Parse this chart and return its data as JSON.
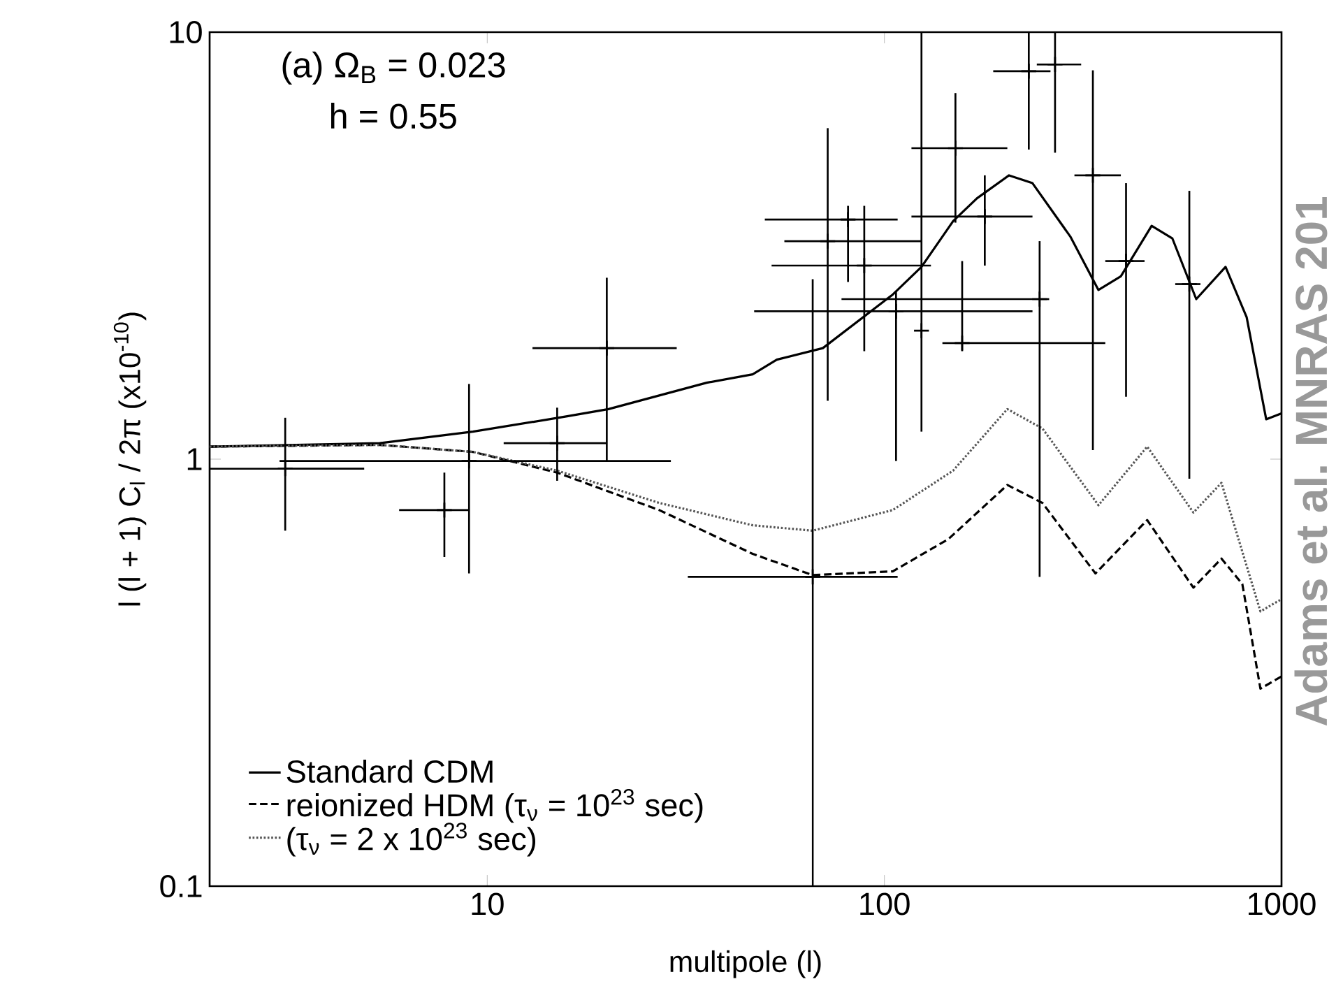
{
  "chart_data": {
    "type": "line",
    "xlabel": "multipole (l)",
    "ylabel": "l (l + 1) C$_{l}$ / 2π  (x10$^{-10}$)",
    "annotations": [
      "(a) Ω$_{B}$ = 0.023",
      "h = 0.55",
      "Adams et al. MNRAS 201"
    ],
    "log": "xy",
    "xlim": [
      2,
      1000
    ],
    "ylim": [
      0.1,
      10
    ],
    "xticks": [
      10,
      100,
      1000
    ],
    "yticks": [
      0.1,
      1,
      10
    ],
    "legend": "bottom left",
    "series": [
      {
        "name": "Standard CDM",
        "color": "#000000",
        "line_style": "solid",
        "x": [
          2,
          5.36,
          9.2,
          15.9,
          20.2,
          35.7,
          46.6,
          53.6,
          70,
          105,
          124,
          149,
          171,
          206,
          236,
          294,
          346,
          394,
          471,
          531,
          610,
          723,
          817,
          915,
          1000
        ],
        "values": [
          1.07,
          1.09,
          1.16,
          1.26,
          1.31,
          1.51,
          1.58,
          1.71,
          1.82,
          2.43,
          2.82,
          3.61,
          4.08,
          4.62,
          4.43,
          3.32,
          2.49,
          2.68,
          3.52,
          3.29,
          2.37,
          2.82,
          2.15,
          1.24,
          1.28
        ]
      },
      {
        "name": "reionized HDM (τ$_{ν}$ = 10$^{23}$ sec)",
        "color": "#000000",
        "line_style": "dashed",
        "x": [
          2,
          5.36,
          9.2,
          15,
          27.1,
          46.6,
          66,
          105,
          145,
          204,
          250,
          340,
          459,
          600,
          706,
          797,
          885,
          1000
        ],
        "values": [
          1.07,
          1.08,
          1.04,
          0.93,
          0.76,
          0.6,
          0.535,
          0.546,
          0.65,
          0.87,
          0.79,
          0.54,
          0.72,
          0.5,
          0.585,
          0.51,
          0.29,
          0.31
        ]
      },
      {
        "name": "(τ$_{ν}$ = 2 x 10$^{23}$ sec)",
        "color": "#555555",
        "line_style": "dotted",
        "x": [
          2,
          5.36,
          9.2,
          15,
          27.1,
          46.6,
          66,
          105,
          149,
          204,
          250,
          346,
          459,
          600,
          706,
          885,
          1000
        ],
        "values": [
          1.07,
          1.08,
          1.04,
          0.94,
          0.79,
          0.7,
          0.68,
          0.76,
          0.94,
          1.31,
          1.18,
          0.78,
          1.07,
          0.75,
          0.88,
          0.44,
          0.47
        ]
      },
      {
        "type": "scatter",
        "color": "#000000",
        "marker": "cross",
        "x": [
          3.1,
          7.8,
          9,
          15,
          20,
          66,
          72,
          81,
          89,
          107,
          124,
          151,
          179,
          157,
          246,
          231,
          269,
          335,
          406,
          586
        ],
        "values": [
          0.95,
          0.76,
          0.99,
          1.09,
          1.82,
          0.53,
          3.24,
          3.64,
          2.84,
          2.22,
          2.0,
          5.35,
          3.7,
          1.87,
          2.37,
          8.1,
          8.4,
          4.62,
          2.91,
          2.57
        ],
        "errors": [
          [
            0.68,
            1.25
          ],
          [
            0.59,
            0.93
          ],
          [
            0.54,
            1.5
          ],
          [
            0.89,
            1.32
          ],
          [
            0.99,
            2.66
          ],
          [
            0.1,
            2.64
          ],
          [
            1.37,
            5.96
          ],
          [
            2.6,
            3.92
          ],
          [
            1.79,
            3.92
          ],
          [
            0.99,
            2.47
          ],
          [
            1.16,
            10
          ],
          [
            3.58,
            7.2
          ],
          [
            2.84,
            4.62
          ],
          [
            1.79,
            2.91
          ],
          [
            0.53,
            3.24
          ],
          [
            5.31,
            10
          ],
          [
            5.22,
            10
          ],
          [
            1.05,
            8.14
          ],
          [
            1.4,
            4.43
          ],
          [
            0.9,
            4.25
          ]
        ],
        "xerrors": [
          [
            2,
            4.9
          ],
          [
            6,
            9
          ],
          [
            3,
            29
          ],
          [
            11,
            20
          ],
          [
            13,
            30
          ],
          [
            32,
            108
          ],
          [
            56,
            124
          ],
          [
            50,
            108
          ],
          [
            52,
            131
          ],
          [
            47,
            236
          ],
          null,
          [
            117,
            204
          ],
          [
            117,
            236
          ],
          [
            140,
            360
          ],
          [
            78,
            260
          ],
          [
            188,
            262
          ],
          [
            242,
            313
          ],
          [
            301,
            394
          ],
          [
            360,
            452
          ],
          [
            540,
            625
          ]
        ]
      }
    ]
  }
}
